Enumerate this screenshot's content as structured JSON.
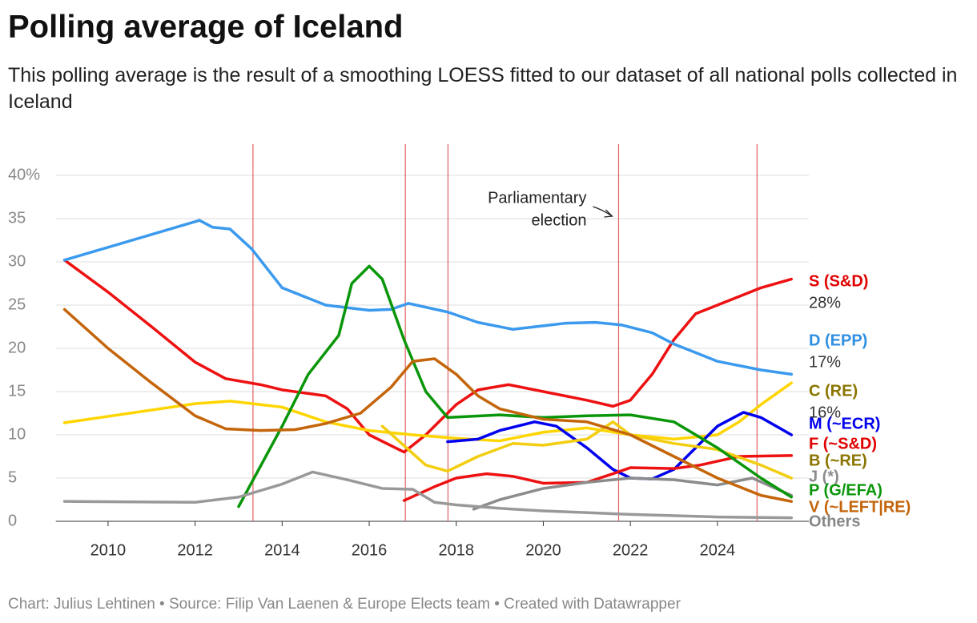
{
  "chart_data": {
    "type": "line",
    "title": "Polling average of Iceland",
    "subtitle": "This polling average is the result of a smoothing LOESS fitted to our dataset of all national polls collected in Iceland",
    "footer": "Chart: Julius Lehtinen • Source: Filip Van Laenen & Europe Elects team • Created with Datawrapper",
    "annotation": [
      "Parliamentary",
      "election"
    ],
    "election_lines": [
      2013.33,
      2016.83,
      2017.81,
      2021.73,
      2024.91
    ],
    "xlim": [
      2008.8,
      2026.1
    ],
    "xticks": [
      2010,
      2012,
      2014,
      2016,
      2018,
      2020,
      2022,
      2024
    ],
    "ylim": [
      0,
      40
    ],
    "yticks": [
      0,
      5,
      10,
      15,
      20,
      25,
      30,
      35,
      {
        "value": 40,
        "label": "40%"
      }
    ],
    "grid": true,
    "series": [
      {
        "name": "S (S&D)",
        "color": "#ee1111",
        "label_color": "#e00000",
        "x": [
          2009,
          2010,
          2011,
          2012,
          2012.7,
          2013.5,
          2014,
          2015,
          2015.5,
          2016,
          2016.8,
          2017.3,
          2018,
          2018.5,
          2019.2,
          2020,
          2021,
          2021.6,
          2022,
          2022.5,
          2023,
          2023.5,
          2024,
          2024.5,
          2025,
          2025.7
        ],
        "values": [
          30.2,
          26.5,
          22.5,
          18.4,
          16.5,
          15.8,
          15.2,
          14.5,
          13,
          10,
          8,
          10,
          13.5,
          15.2,
          15.8,
          15,
          14,
          13.3,
          14,
          17,
          21,
          24,
          25,
          26,
          27,
          28
        ],
        "value_labels": [
          null,
          null,
          null,
          null,
          null,
          null,
          null,
          null,
          null,
          null,
          null,
          null,
          null,
          null,
          null,
          null,
          null,
          null,
          null,
          null,
          null,
          null,
          null,
          null,
          null,
          "28%"
        ]
      },
      {
        "name": "D (EPP)",
        "color": "#3b9aee",
        "label_color": "#2f8fe0",
        "x": [
          2009,
          2012.1,
          2012.4,
          2012.8,
          2013.3,
          2014,
          2015,
          2016,
          2016.5,
          2016.9,
          2017.8,
          2018.5,
          2019.3,
          2020,
          2020.5,
          2021.2,
          2021.8,
          2022.5,
          2023,
          2023.5,
          2024,
          2025,
          2025.7
        ],
        "values": [
          30.2,
          34.8,
          34,
          33.8,
          31.5,
          27,
          25,
          24.4,
          24.5,
          25.2,
          24.2,
          23,
          22.2,
          22.6,
          22.9,
          23,
          22.7,
          21.8,
          20.5,
          19.5,
          18.5,
          17.5,
          17
        ],
        "value_labels": [
          null,
          null,
          null,
          null,
          null,
          null,
          null,
          null,
          null,
          null,
          null,
          null,
          null,
          null,
          null,
          null,
          null,
          null,
          null,
          null,
          null,
          null,
          "17%"
        ]
      },
      {
        "name": "C (RE)",
        "color": "#ffd500",
        "label_color": "#8a7500",
        "x": [
          2009,
          2012,
          2012.8,
          2013.5,
          2014,
          2015,
          2016,
          2017,
          2018,
          2019,
          2020,
          2021,
          2022,
          2023,
          2024,
          2024.5,
          2025,
          2025.7
        ],
        "values": [
          11.4,
          13.6,
          13.9,
          13.5,
          13.2,
          11.5,
          10.5,
          10,
          9.6,
          9.3,
          10.3,
          10.8,
          10,
          9.5,
          10,
          11.5,
          13.5,
          16
        ],
        "value_labels": [
          null,
          null,
          null,
          null,
          null,
          null,
          null,
          null,
          null,
          null,
          null,
          null,
          null,
          null,
          null,
          null,
          null,
          "16%"
        ]
      },
      {
        "name": "M (~ECR)",
        "color": "#0000ee",
        "label_color": "#0000ee",
        "x": [
          2017.8,
          2018.5,
          2019,
          2019.8,
          2020.3,
          2021,
          2021.6,
          2022,
          2022.5,
          2023,
          2023.5,
          2024,
          2024.6,
          2025,
          2025.7
        ],
        "values": [
          9.2,
          9.5,
          10.5,
          11.5,
          11,
          8.5,
          6,
          5,
          4.9,
          6,
          8.5,
          11,
          12.6,
          12,
          10
        ]
      },
      {
        "name": "F (~S&D)",
        "color": "#ee1111",
        "label_color": "#e00000",
        "x": [
          2016.8,
          2017.5,
          2018,
          2018.7,
          2019.3,
          2020,
          2021,
          2021.6,
          2022,
          2023,
          2023.6,
          2024.5,
          2025.7
        ],
        "values": [
          2.4,
          4,
          5,
          5.5,
          5.2,
          4.4,
          4.5,
          5.5,
          6.2,
          6.1,
          6.5,
          7.5,
          7.6
        ]
      },
      {
        "name": "B (~RE)",
        "color": "#f2cd10",
        "label_color": "#8a7500",
        "x": [
          2016.3,
          2017.3,
          2017.8,
          2018.5,
          2019.3,
          2020,
          2021,
          2021.6,
          2022,
          2023,
          2024,
          2025,
          2025.7
        ],
        "values": [
          11,
          6.5,
          5.8,
          7.5,
          9,
          8.8,
          9.5,
          11.5,
          10,
          9,
          8.3,
          6.5,
          5
        ]
      },
      {
        "name": "J (*)",
        "color": "#8c8c8c",
        "label_color": "#8c8c8c",
        "x": [
          2018.4,
          2019,
          2020,
          2021,
          2022,
          2023,
          2024,
          2024.8,
          2025.7
        ],
        "values": [
          1.4,
          2.5,
          3.8,
          4.5,
          5,
          4.8,
          4.2,
          5,
          3
        ]
      },
      {
        "name": "P (G/EFA)",
        "color": "#0a960a",
        "label_color": "#0a960a",
        "x": [
          2013,
          2014,
          2014.6,
          2015.3,
          2015.6,
          2016,
          2016.3,
          2016.8,
          2017.3,
          2017.8,
          2019,
          2020,
          2021,
          2022,
          2023,
          2024,
          2025,
          2025.7
        ],
        "values": [
          1.7,
          11,
          17,
          21.5,
          27.5,
          29.5,
          28,
          21,
          15,
          12,
          12.3,
          12,
          12.2,
          12.3,
          11.5,
          8.5,
          5,
          2.8
        ]
      },
      {
        "name": "V (~LEFT|RE)",
        "color": "#c4650a",
        "label_color": "#c4650a",
        "x": [
          2009,
          2010,
          2011,
          2012,
          2012.7,
          2013.5,
          2014.3,
          2015,
          2015.8,
          2016.5,
          2017,
          2017.5,
          2018,
          2018.5,
          2019,
          2020,
          2021,
          2022,
          2023,
          2024,
          2025,
          2025.7
        ],
        "values": [
          24.5,
          20,
          16,
          12.2,
          10.7,
          10.5,
          10.6,
          11.3,
          12.5,
          15.5,
          18.5,
          18.8,
          17,
          14.5,
          13,
          11.8,
          11.5,
          10,
          7.5,
          5,
          3,
          2.3
        ]
      },
      {
        "name": "Others",
        "color": "#999999",
        "label_color": "#888888",
        "x": [
          2009,
          2012,
          2013,
          2014,
          2014.7,
          2015.5,
          2016.3,
          2017,
          2017.5,
          2018,
          2019,
          2020,
          2022,
          2024,
          2025.7
        ],
        "values": [
          2.3,
          2.2,
          2.8,
          4.3,
          5.7,
          4.8,
          3.8,
          3.7,
          2.2,
          1.9,
          1.5,
          1.2,
          0.8,
          0.5,
          0.4
        ]
      }
    ]
  }
}
